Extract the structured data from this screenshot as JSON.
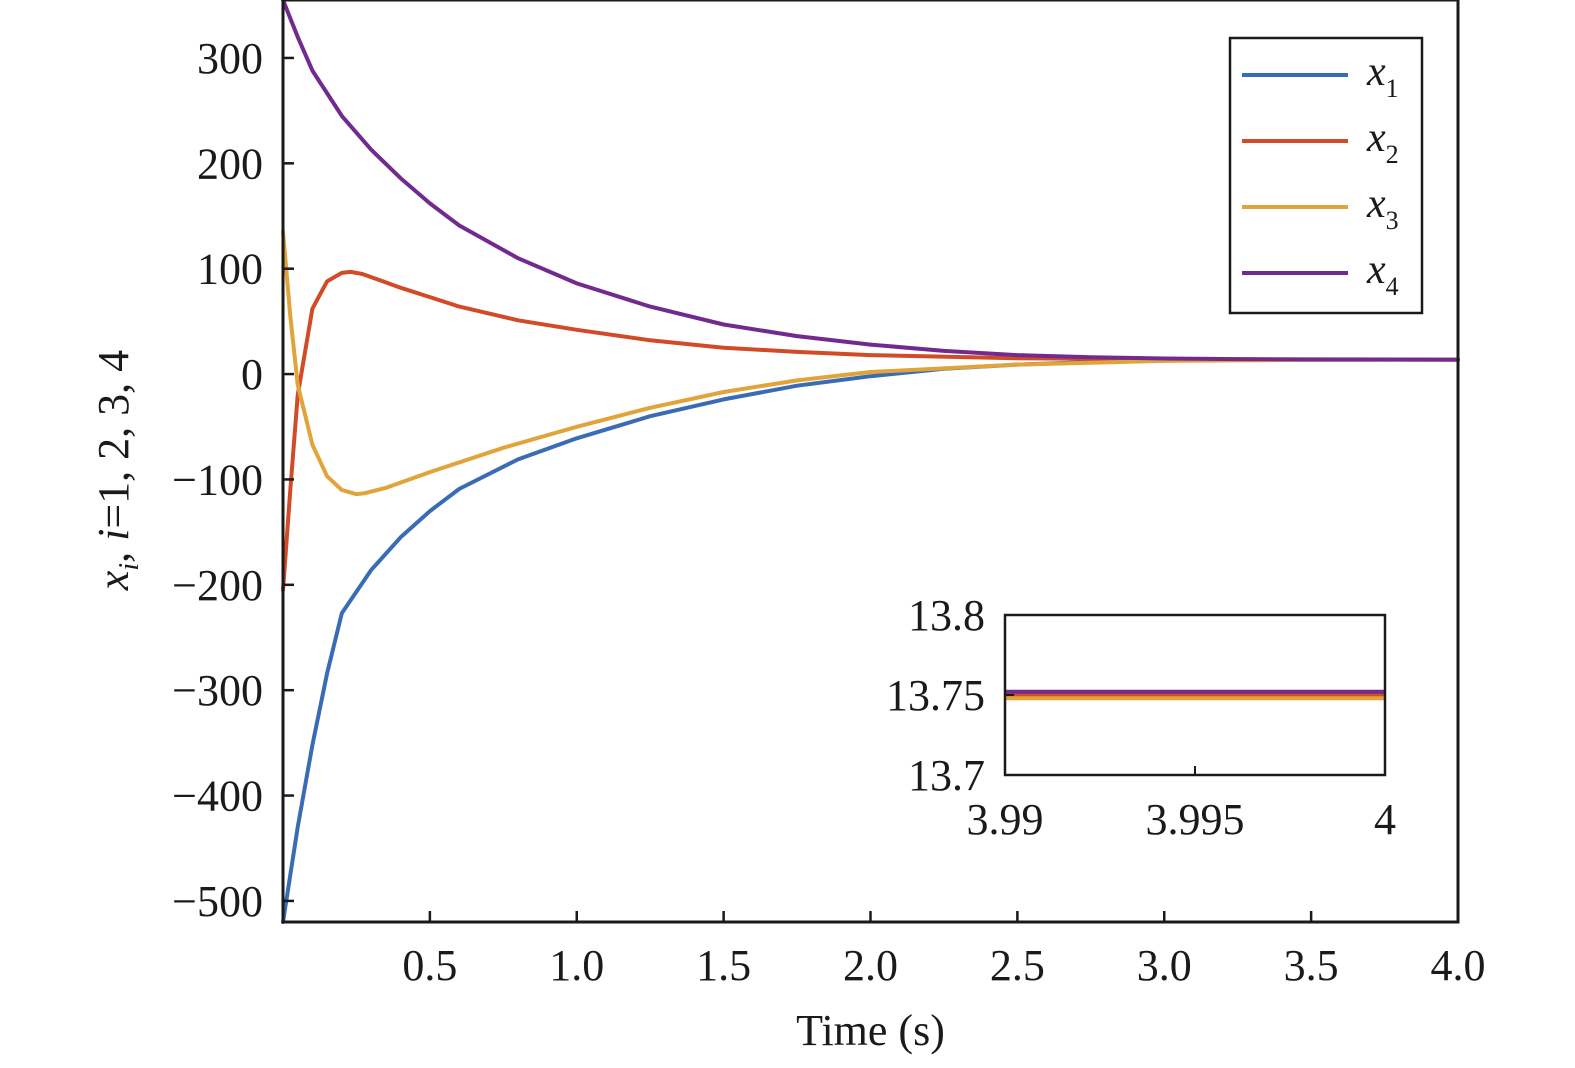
{
  "chart_data": {
    "type": "line",
    "title": "",
    "xlabel": "Time (s)",
    "ylabel": "x_i, i=1, 2, 3, 4",
    "xlim": [
      0,
      4.0
    ],
    "ylim": [
      -520,
      355
    ],
    "xticks": [
      0.5,
      1.0,
      1.5,
      2.0,
      2.5,
      3.0,
      3.5,
      4.0
    ],
    "xtick_labels": [
      "0.5",
      "1.0",
      "1.5",
      "2.0",
      "2.5",
      "3.0",
      "3.5",
      "4.0"
    ],
    "yticks": [
      300,
      200,
      100,
      0,
      -100,
      -200,
      -300,
      -400,
      -500
    ],
    "ytick_labels": [
      "300",
      "200",
      "100",
      "0",
      "−100",
      "−200",
      "−300",
      "−400",
      "−500"
    ],
    "grid": false,
    "legend_position": "top-right",
    "series": [
      {
        "name": "x1",
        "label_main": "x",
        "label_sub": "1",
        "color": "#3A6CB5",
        "x": [
          0,
          0.05,
          0.1,
          0.15,
          0.2,
          0.3,
          0.4,
          0.5,
          0.6,
          0.8,
          1.0,
          1.25,
          1.5,
          1.75,
          2.0,
          2.25,
          2.5,
          2.75,
          3.0,
          3.25,
          3.5,
          3.75,
          4.0
        ],
        "y": [
          -520,
          -430,
          -352,
          -284,
          -227,
          -186,
          -155,
          -130,
          -109,
          -81,
          -61,
          -40,
          -24,
          -11,
          -2,
          5,
          9,
          11.5,
          12.8,
          13.4,
          13.65,
          13.73,
          13.75
        ]
      },
      {
        "name": "x2",
        "label_main": "x",
        "label_sub": "2",
        "color": "#D14B27",
        "x": [
          0,
          0.025,
          0.05,
          0.1,
          0.15,
          0.2,
          0.23,
          0.27,
          0.3,
          0.4,
          0.5,
          0.6,
          0.8,
          1.0,
          1.25,
          1.5,
          1.75,
          2.0,
          2.5,
          3.0,
          3.5,
          4.0
        ],
        "y": [
          -205,
          -110,
          -20,
          62,
          88,
          96,
          97,
          95,
          92,
          82,
          73,
          64,
          51,
          42,
          32,
          25,
          21,
          18,
          15,
          14,
          13.8,
          13.75
        ]
      },
      {
        "name": "x3",
        "label_main": "x",
        "label_sub": "3",
        "color": "#E1A43A",
        "x": [
          0,
          0.025,
          0.05,
          0.1,
          0.15,
          0.2,
          0.25,
          0.28,
          0.35,
          0.5,
          0.75,
          1.0,
          1.25,
          1.5,
          1.75,
          2.0,
          2.5,
          3.0,
          3.5,
          4.0
        ],
        "y": [
          135,
          55,
          -10,
          -67,
          -97,
          -110,
          -114,
          -113,
          -108,
          -93,
          -70,
          -50,
          -32,
          -17,
          -6,
          2,
          9,
          12.5,
          13.5,
          13.75
        ]
      },
      {
        "name": "x4",
        "label_main": "x",
        "label_sub": "4",
        "color": "#722A8F",
        "x": [
          0,
          0.05,
          0.1,
          0.2,
          0.3,
          0.4,
          0.5,
          0.6,
          0.8,
          1.0,
          1.25,
          1.5,
          1.75,
          2.0,
          2.25,
          2.5,
          2.75,
          3.0,
          3.25,
          3.5,
          4.0
        ],
        "y": [
          355,
          320,
          288,
          245,
          213,
          186,
          162,
          141,
          110,
          86,
          64,
          47,
          36,
          28,
          22,
          18,
          16,
          14.8,
          14.2,
          13.9,
          13.75
        ]
      }
    ],
    "inset": {
      "xlim": [
        3.99,
        4.0
      ],
      "ylim": [
        13.7,
        13.8
      ],
      "xticks": [
        3.99,
        3.995,
        4.0
      ],
      "xtick_labels": [
        "3.99",
        "3.995",
        "4"
      ],
      "yticks": [
        13.8,
        13.75,
        13.7
      ],
      "ytick_labels": [
        "13.8",
        "13.75",
        "13.7"
      ],
      "series_values": [
        {
          "name": "x1",
          "y": 13.75,
          "color": "#3A6CB5"
        },
        {
          "name": "x2",
          "y": 13.75,
          "color": "#D14B27"
        },
        {
          "name": "x3",
          "y": 13.748,
          "color": "#E1A43A"
        },
        {
          "name": "x4",
          "y": 13.752,
          "color": "#722A8F"
        }
      ]
    }
  }
}
